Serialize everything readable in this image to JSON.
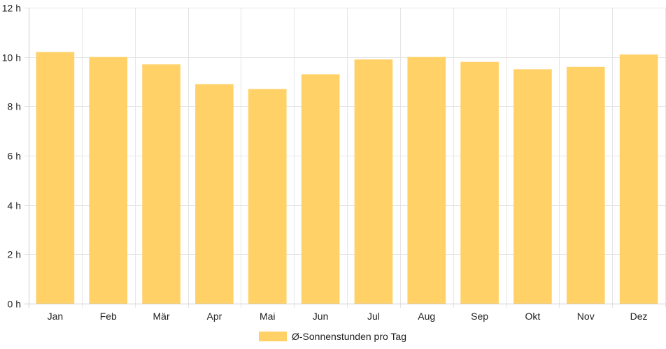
{
  "chart_data": {
    "type": "bar",
    "categories": [
      "Jan",
      "Feb",
      "Mär",
      "Apr",
      "Mai",
      "Jun",
      "Jul",
      "Aug",
      "Sep",
      "Okt",
      "Nov",
      "Dez"
    ],
    "series": [
      {
        "name": "Ø-Sonnenstunden pro Tag",
        "values": [
          10.2,
          10.0,
          9.7,
          8.9,
          8.7,
          9.3,
          9.9,
          10.0,
          9.8,
          9.5,
          9.6,
          10.1
        ]
      }
    ],
    "ylim": [
      0,
      12
    ],
    "yticks": [
      0,
      2,
      4,
      6,
      8,
      10,
      12
    ],
    "ytick_suffix": " h",
    "grid": true,
    "legend_position": "bottom-center",
    "colors": {
      "bar": "#ffd166",
      "grid": "#e5e5e5",
      "axis": "#cccccc",
      "text": "#222222"
    }
  }
}
